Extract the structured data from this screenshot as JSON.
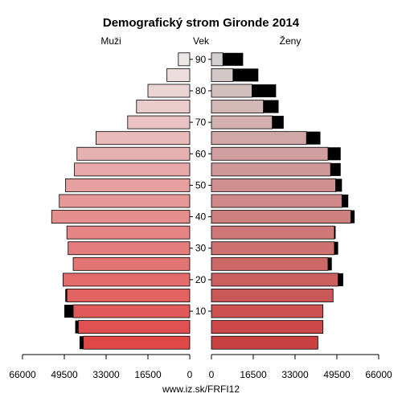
{
  "chart_data": {
    "type": "bar",
    "title": "Demografický strom Gironde 2014",
    "left_label": "Muži",
    "center_label": "Vek",
    "right_label": "Ženy",
    "footer": "www.iz.sk/FRFI12",
    "age_groups": [
      "0-4",
      "5-9",
      "10-14",
      "15-19",
      "20-24",
      "25-29",
      "30-34",
      "35-39",
      "40-44",
      "45-49",
      "50-54",
      "55-59",
      "60-64",
      "65-69",
      "70-74",
      "75-79",
      "80-84",
      "85-89",
      "90+"
    ],
    "age_ticks": [
      10,
      20,
      30,
      40,
      50,
      60,
      70,
      80,
      90
    ],
    "x_ticks_left": [
      "66000",
      "49500",
      "33000",
      "16500",
      "0"
    ],
    "x_ticks_right": [
      "0",
      "16500",
      "33000",
      "49500",
      "66000"
    ],
    "xlim": [
      0,
      66000
    ],
    "series": [
      {
        "name": "Muži",
        "values": [
          42000,
          44000,
          46000,
          48500,
          50000,
          46000,
          48000,
          48500,
          54500,
          51500,
          49000,
          45500,
          44500,
          37000,
          24500,
          21000,
          16500,
          9000,
          4500
        ]
      },
      {
        "name": "Ženy",
        "values": [
          42000,
          44000,
          44000,
          48000,
          50000,
          46000,
          48500,
          48500,
          55000,
          51500,
          49000,
          47000,
          46000,
          37500,
          24000,
          20500,
          16000,
          8500,
          4500
        ]
      }
    ],
    "surplus_values": [
      {
        "side": "Muži",
        "values": [
          1500,
          1200,
          3500,
          600,
          0,
          0,
          0,
          0,
          0,
          0,
          0,
          0,
          0,
          0,
          0,
          0,
          0,
          0,
          0
        ]
      },
      {
        "side": "Ženy",
        "values": [
          0,
          0,
          0,
          0,
          2000,
          1500,
          1500,
          500,
          1500,
          2500,
          2500,
          4000,
          5000,
          5500,
          4500,
          6000,
          9500,
          10000,
          8000
        ]
      }
    ],
    "colors": {
      "young": "#e04848",
      "old": "#ece6e6",
      "surplus": "#000000",
      "outline": "#000000"
    }
  }
}
